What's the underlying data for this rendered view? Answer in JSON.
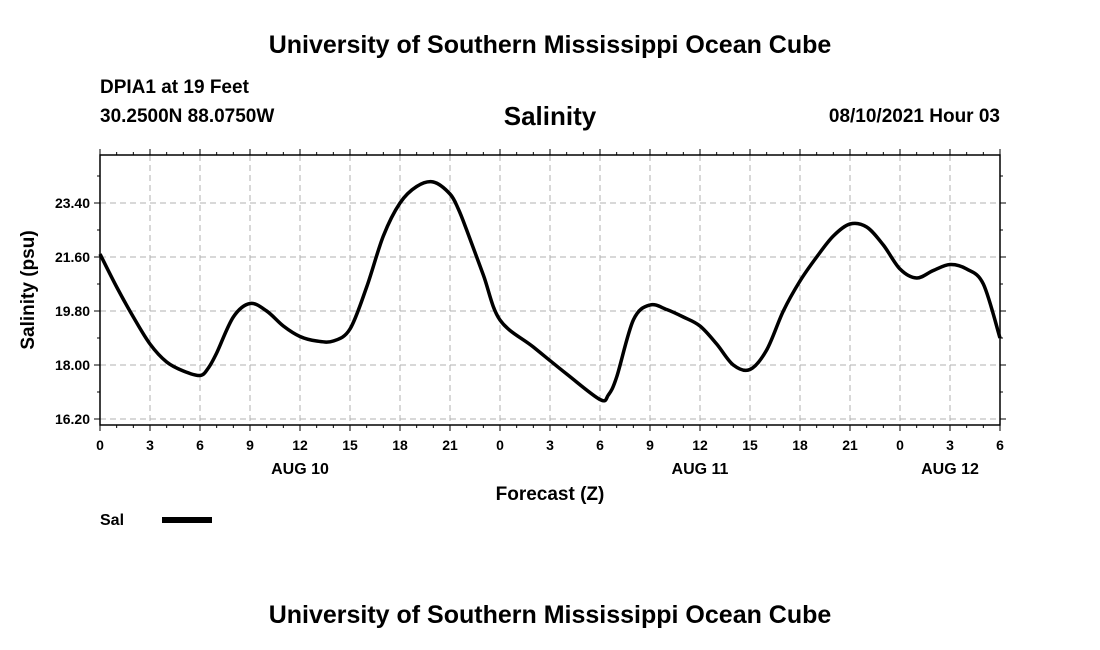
{
  "header": {
    "title_top": "University of Southern Mississippi Ocean Cube",
    "station": "DPIA1 at 19 Feet",
    "location": "30.2500N  88.0750W",
    "variable": "Salinity",
    "datetime": "08/10/2021 Hour 03",
    "title_bottom": "University of Southern Mississippi Ocean Cube"
  },
  "legend": {
    "label": "Sal",
    "color": "#000000"
  },
  "chart_data": {
    "type": "line",
    "title": "Salinity",
    "xlabel": "Forecast (Z)",
    "ylabel": "Salinity (psu)",
    "xlim": [
      0,
      54
    ],
    "ylim": [
      16.0,
      25.0
    ],
    "yticks": [
      16.2,
      18.0,
      19.8,
      21.6,
      23.4
    ],
    "ytick_labels": [
      "16.20",
      "18.00",
      "19.80",
      "21.60",
      "23.40"
    ],
    "xtick_labels": [
      "0",
      "3",
      "6",
      "9",
      "12",
      "15",
      "18",
      "21",
      "0",
      "3",
      "6",
      "9",
      "12",
      "15",
      "18",
      "21",
      "0",
      "3",
      "6"
    ],
    "date_labels": [
      {
        "label": "AUG 10",
        "x": 12
      },
      {
        "label": "AUG 11",
        "x": 36
      },
      {
        "label": "AUG 12",
        "x": 51
      }
    ],
    "grid": true,
    "legend": "bottom-left",
    "series": [
      {
        "name": "Sal",
        "color": "#000000",
        "x": [
          0,
          1,
          2,
          3,
          4,
          5,
          6,
          6.5,
          7,
          8,
          9,
          10,
          11,
          12,
          13,
          14,
          15,
          16,
          17,
          18,
          19,
          20,
          21,
          21.5,
          22,
          23,
          24,
          26,
          28,
          30,
          30.5,
          31,
          32,
          33,
          34,
          35,
          36,
          37,
          38,
          39,
          40,
          41,
          42,
          43,
          44,
          45,
          46,
          47,
          48,
          49,
          50,
          51,
          52,
          53,
          54
        ],
        "values": [
          21.7,
          20.6,
          19.6,
          18.7,
          18.1,
          17.8,
          17.65,
          17.9,
          18.4,
          19.6,
          20.05,
          19.8,
          19.3,
          18.95,
          18.8,
          18.8,
          19.2,
          20.6,
          22.3,
          23.4,
          23.95,
          24.1,
          23.7,
          23.2,
          22.5,
          21.0,
          19.5,
          18.6,
          17.7,
          16.85,
          17.0,
          17.6,
          19.5,
          20.0,
          19.85,
          19.6,
          19.3,
          18.7,
          18.0,
          17.85,
          18.5,
          19.8,
          20.8,
          21.6,
          22.3,
          22.7,
          22.6,
          22.0,
          21.2,
          20.9,
          21.15,
          21.35,
          21.2,
          20.7,
          18.9
        ]
      }
    ]
  }
}
